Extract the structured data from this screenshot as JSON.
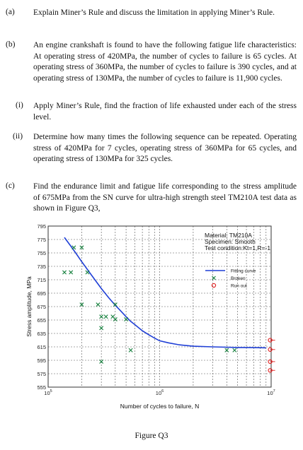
{
  "questions": [
    {
      "label": "(a)",
      "text": "Explain Miner’s Rule and discuss the limitation in applying Miner’s Rule."
    },
    {
      "label": "(b)",
      "text": "An engine crankshaft is found to have the following fatigue life characteristics: At operating stress of 420MPa, the number of cycles to failure is 65 cycles. At operating stress of 360MPa, the number of cycles to failure is 390 cycles, and at operating stress of 130MPa, the number of cycles to failure is 11,900 cycles."
    },
    {
      "label": "(i)",
      "text": "Apply Miner’s Rule, find the fraction of life exhausted under each of the stress level."
    },
    {
      "label": "(ii)",
      "text": "Determine how many times the following sequence can be repeated. Operating stress of 420MPa for 7 cycles, operating stress of 360MPa for 65 cycles, and operating stress of 130MPa for 325 cycles."
    },
    {
      "label": "(c)",
      "text": "Find the endurance limit and fatigue life corresponding to the stress amplitude of 675MPa from the SN curve for ultra-high strength steel TM210A test data as shown in Figure Q3,"
    }
  ],
  "figure_caption": "Figure Q3",
  "chart_data": {
    "type": "scatter",
    "xlabel": "Number of cycles to failure, N",
    "ylabel": "Stress amplitude, MPa",
    "xscale": "log",
    "xlim": [
      100000,
      10000000
    ],
    "ylim": [
      555,
      795
    ],
    "yticks": [
      555,
      575,
      595,
      615,
      635,
      655,
      675,
      695,
      715,
      735,
      755,
      775,
      795
    ],
    "xtick_labels": [
      {
        "value": 100000,
        "base": "10",
        "exp": "5"
      },
      {
        "value": 1000000,
        "base": "10",
        "exp": "6"
      },
      {
        "value": 10000000,
        "base": "10",
        "exp": "7"
      }
    ],
    "grid": true,
    "info_lines": [
      "Material: TM210A",
      "Specimen: Smooth",
      "Test condition:Kt=1,R=-1"
    ],
    "legend_position": "top-right",
    "legend": [
      {
        "label": "Fitting curve",
        "marker": "line"
      },
      {
        "label": "Broken",
        "marker": "x"
      },
      {
        "label": "Run out",
        "marker": "o"
      }
    ],
    "colors": {
      "fit": "#1f3fd6",
      "broken": "#15803d",
      "runout": "#e11d1d",
      "grid": "#555555"
    },
    "series": [
      {
        "name": "Fitting curve",
        "kind": "line",
        "x": [
          140000,
          160000,
          180000,
          200000,
          230000,
          260000,
          300000,
          350000,
          400000,
          450000,
          500000,
          550000,
          600000,
          700000,
          800000,
          900000,
          1000000,
          1200000,
          1500000,
          2000000,
          3000000,
          4000000,
          5000000,
          6000000,
          7000000,
          8000000,
          9000000
        ],
        "y": [
          778,
          765,
          753,
          742,
          728,
          716,
          702,
          688,
          677,
          668,
          660,
          653,
          648,
          639,
          633,
          628,
          624,
          621,
          618,
          616,
          615,
          614.5,
          614,
          614,
          613.8,
          613.7,
          613.5
        ]
      },
      {
        "name": "Broken",
        "kind": "x",
        "x": [
          170000,
          200000,
          140000,
          160000,
          225000,
          200000,
          280000,
          400000,
          300000,
          330000,
          380000,
          400000,
          500000,
          300000,
          550000,
          4000000,
          4700000,
          300000
        ],
        "y": [
          763,
          763,
          726,
          726,
          726,
          678,
          678,
          678,
          660,
          660,
          660,
          656,
          656,
          643,
          610,
          610,
          610,
          593
        ]
      },
      {
        "name": "Run out",
        "kind": "o",
        "x": [
          9800000,
          9800000,
          9800000,
          9800000
        ],
        "y": [
          625,
          611,
          593,
          580
        ]
      }
    ]
  }
}
